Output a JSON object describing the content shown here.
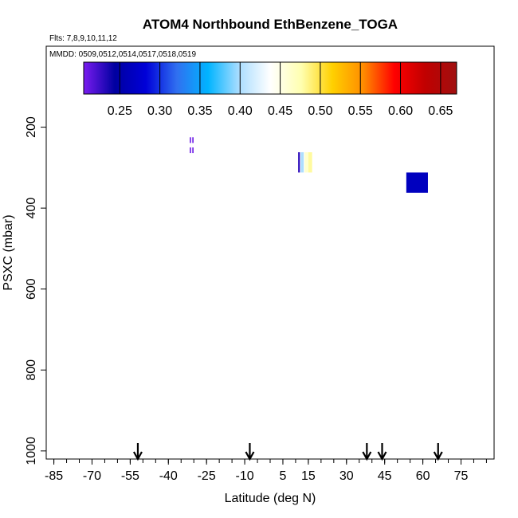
{
  "chart_data": {
    "type": "heatmap",
    "title": "ATOM4 Northbound EthBenzene_TOGA",
    "subtitle_flights": "Flts: 7,8,9,10,11,12",
    "subtitle_dates": "MMDD: 0509,0512,0514,0517,0518,0519",
    "xlabel": "Latitude (deg N)",
    "ylabel": "PSXC (mbar)",
    "xlim": [
      -88,
      88
    ],
    "ylim": [
      1020,
      0
    ],
    "x_ticks": [
      -85,
      -70,
      -55,
      -40,
      -25,
      -10,
      5,
      15,
      30,
      45,
      60,
      75
    ],
    "x_minor_step": 5,
    "y_ticks": [
      200,
      400,
      600,
      800,
      1000
    ],
    "arrows_latitude": [
      -52,
      -8,
      38,
      44,
      66
    ],
    "colorbar": {
      "min": 0.205,
      "max": 0.67,
      "ticks": [
        0.25,
        0.3,
        0.35,
        0.4,
        0.45,
        0.5,
        0.55,
        0.6,
        0.65
      ],
      "tick_labels": [
        "0.25",
        "0.30",
        "0.35",
        "0.40",
        "0.45",
        "0.50",
        "0.55",
        "0.60",
        "0.65"
      ],
      "stops": [
        "#7a1cf0",
        "#0000a0",
        "#0000d8",
        "#3070f0",
        "#00b4ff",
        "#aaddff",
        "#ffffff",
        "#ffffb0",
        "#ffd000",
        "#ff8c00",
        "#ff0000",
        "#c00000",
        "#a01010"
      ]
    },
    "cells": [
      {
        "lat": -31.6,
        "dlat": 0.5,
        "p": 225,
        "dp": 14,
        "value": 0.21
      },
      {
        "lat": -30.6,
        "dlat": 0.5,
        "p": 225,
        "dp": 14,
        "value": 0.21
      },
      {
        "lat": -31.6,
        "dlat": 0.5,
        "p": 250,
        "dp": 14,
        "value": 0.21
      },
      {
        "lat": -30.6,
        "dlat": 0.5,
        "p": 250,
        "dp": 14,
        "value": 0.21
      },
      {
        "lat": 11.0,
        "dlat": 0.7,
        "p": 262,
        "dp": 50,
        "value": 0.23
      },
      {
        "lat": 12.0,
        "dlat": 1.2,
        "p": 262,
        "dp": 50,
        "value": 0.4
      },
      {
        "lat": 13.5,
        "dlat": 1.5,
        "p": 262,
        "dp": 50,
        "value": 0.46
      },
      {
        "lat": 15.0,
        "dlat": 1.5,
        "p": 262,
        "dp": 50,
        "value": 0.48
      },
      {
        "lat": 53.5,
        "dlat": 8.5,
        "p": 312,
        "dp": 50,
        "value": 0.265
      }
    ]
  }
}
